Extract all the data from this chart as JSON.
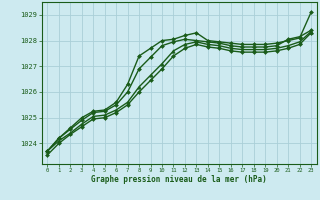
{
  "title": "Graphe pression niveau de la mer (hPa)",
  "background_color": "#cdeaf0",
  "grid_color": "#aacfd8",
  "line_color": "#1a5c1a",
  "xlim": [
    -0.5,
    23.5
  ],
  "ylim": [
    1023.2,
    1029.5
  ],
  "yticks": [
    1024,
    1025,
    1026,
    1027,
    1028,
    1029
  ],
  "xticks": [
    0,
    1,
    2,
    3,
    4,
    5,
    6,
    7,
    8,
    9,
    10,
    11,
    12,
    13,
    14,
    15,
    16,
    17,
    18,
    19,
    20,
    21,
    22,
    23
  ],
  "lines": [
    {
      "x": [
        0,
        1,
        2,
        3,
        4,
        5,
        6,
        7,
        8,
        9,
        10,
        11,
        12,
        13,
        14,
        15,
        16,
        17,
        18,
        19,
        20,
        21,
        22,
        23
      ],
      "y": [
        1023.7,
        1024.2,
        1024.6,
        1025.0,
        1025.25,
        1025.3,
        1025.6,
        1026.3,
        1027.4,
        1027.7,
        1028.0,
        1028.05,
        1028.2,
        1028.3,
        1028.0,
        1027.95,
        1027.9,
        1027.85,
        1027.85,
        1027.85,
        1027.9,
        1028.0,
        1028.1,
        1029.1
      ],
      "marker": "D",
      "markersize": 2.0,
      "linewidth": 1.0
    },
    {
      "x": [
        0,
        1,
        2,
        3,
        4,
        5,
        6,
        7,
        8,
        9,
        10,
        11,
        12,
        13,
        14,
        15,
        16,
        17,
        18,
        19,
        20,
        21,
        22,
        23
      ],
      "y": [
        1023.7,
        1024.2,
        1024.55,
        1024.9,
        1025.2,
        1025.25,
        1025.5,
        1026.0,
        1026.9,
        1027.35,
        1027.8,
        1027.95,
        1028.05,
        1028.0,
        1027.95,
        1027.9,
        1027.8,
        1027.75,
        1027.75,
        1027.75,
        1027.8,
        1028.05,
        1028.15,
        1028.4
      ],
      "marker": "D",
      "markersize": 2.0,
      "linewidth": 1.0
    },
    {
      "x": [
        0,
        1,
        2,
        3,
        4,
        5,
        6,
        7,
        8,
        9,
        10,
        11,
        12,
        13,
        14,
        15,
        16,
        17,
        18,
        19,
        20,
        21,
        22,
        23
      ],
      "y": [
        1023.7,
        1024.1,
        1024.4,
        1024.75,
        1025.05,
        1025.1,
        1025.3,
        1025.6,
        1026.2,
        1026.65,
        1027.1,
        1027.6,
        1027.85,
        1027.95,
        1027.85,
        1027.8,
        1027.7,
        1027.65,
        1027.65,
        1027.65,
        1027.7,
        1027.8,
        1027.95,
        1028.35
      ],
      "marker": "^",
      "markersize": 2.5,
      "linewidth": 1.0
    },
    {
      "x": [
        0,
        1,
        2,
        3,
        4,
        5,
        6,
        7,
        8,
        9,
        10,
        11,
        12,
        13,
        14,
        15,
        16,
        17,
        18,
        19,
        20,
        21,
        22,
        23
      ],
      "y": [
        1023.55,
        1024.0,
        1024.35,
        1024.65,
        1024.95,
        1025.0,
        1025.2,
        1025.5,
        1026.0,
        1026.45,
        1026.9,
        1027.4,
        1027.7,
        1027.85,
        1027.75,
        1027.7,
        1027.6,
        1027.55,
        1027.55,
        1027.55,
        1027.6,
        1027.7,
        1027.85,
        1028.3
      ],
      "marker": "D",
      "markersize": 2.0,
      "linewidth": 1.0
    }
  ]
}
